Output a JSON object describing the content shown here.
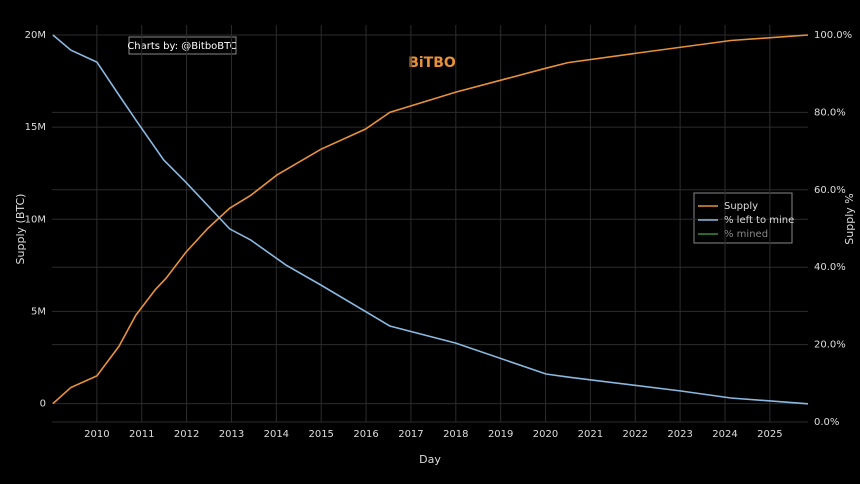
{
  "chart_data": {
    "type": "line",
    "credit": "Charts by: @BitboBTC",
    "logo": "BiTBO",
    "x_label": "Day",
    "y_label": "Supply (BTC)",
    "y2_label": "Supply %",
    "xlim": [
      2009.0,
      2025.85
    ],
    "xticks": [
      2010,
      2011,
      2012,
      2013,
      2014,
      2015,
      2016,
      2017,
      2018,
      2019,
      2020,
      2021,
      2022,
      2023,
      2024,
      2025
    ],
    "ylim": [
      -1000000,
      20000000
    ],
    "yticks": [
      0,
      {
        "value": 5000000,
        "label": "5M"
      },
      {
        "value": 10000000,
        "label": "10M"
      },
      {
        "value": 15000000,
        "label": "15M"
      },
      {
        "value": 20000000,
        "label": "20M"
      }
    ],
    "y2lim": [
      0,
      100
    ],
    "y2ticks": [
      {
        "value": 0,
        "label": "0.0%"
      },
      {
        "value": 20,
        "label": "20.0%"
      },
      {
        "value": 40,
        "label": "40.0%"
      },
      {
        "value": 60,
        "label": "60.0%"
      },
      {
        "value": 80,
        "label": "80.0%"
      },
      {
        "value": 100,
        "label": "100.0%"
      }
    ],
    "grid": true,
    "legend": "right",
    "series": [
      {
        "name": "Supply",
        "color": "#e8913a",
        "x": [
          2009.02,
          2009.42,
          2010.0,
          2010.49,
          2010.87,
          2011.31,
          2011.54,
          2011.98,
          2012.47,
          2012.96,
          2013.43,
          2014.01,
          2014.99,
          2015.99,
          2016.53,
          2018.0,
          2020.01,
          2020.5,
          2021.99,
          2024.13,
          2025.85
        ],
        "values": [
          0,
          870000,
          1500000,
          3100000,
          4800000,
          6200000,
          6800000,
          8200000,
          9500000,
          10600000,
          11300000,
          12400000,
          13800000,
          14900000,
          15800000,
          16900000,
          18200000,
          18500000,
          19000000,
          19700000,
          20000000
        ]
      },
      {
        "name": "% left to mine",
        "color": "#8ab8e0",
        "axis": "y2",
        "x": [
          2009.02,
          2009.42,
          2010.0,
          2010.49,
          2010.87,
          2011.49,
          2011.98,
          2012.96,
          2013.43,
          2014.21,
          2014.99,
          2016.53,
          2018.0,
          2020.01,
          2020.5,
          2023.02,
          2024.13,
          2025.85
        ],
        "values": [
          100,
          96.1,
          93.0,
          84.5,
          78.0,
          67.7,
          62.0,
          49.9,
          47.0,
          40.6,
          35.4,
          24.8,
          20.4,
          12.4,
          11.6,
          8.0,
          6.2,
          4.7
        ]
      },
      {
        "name": "% mined",
        "color": "#3a8a3a",
        "axis": "y2",
        "hidden": true,
        "x": [],
        "values": []
      }
    ]
  }
}
